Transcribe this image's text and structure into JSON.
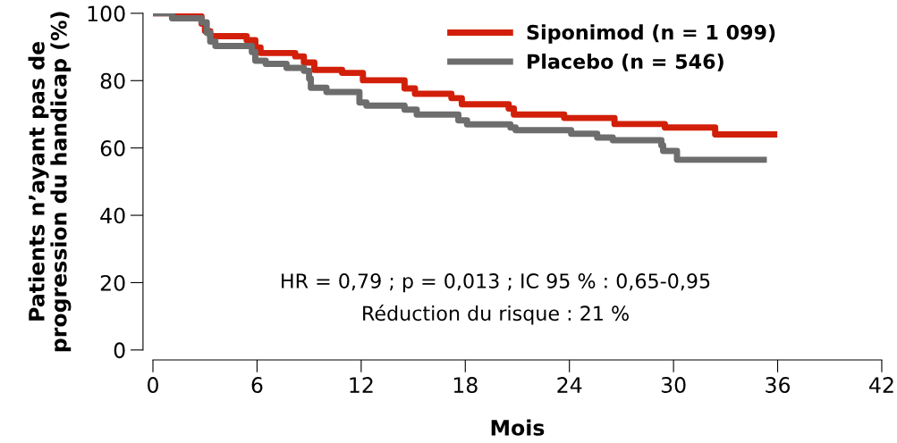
{
  "chart_data": {
    "type": "step",
    "xlabel": "Mois",
    "ylabel": "Patients n’ayant pas de\nprogression du handicap (%)",
    "xlim": [
      0,
      42
    ],
    "xticks": [
      0,
      6,
      12,
      18,
      24,
      30,
      36,
      42
    ],
    "ylim": [
      0,
      100
    ],
    "yticks": [
      0,
      20,
      40,
      60,
      80,
      100
    ],
    "grid": false,
    "legend": "top right",
    "series": [
      {
        "name": "Siponimod (n = 1 099)",
        "color": "#d21f0a",
        "x": [
          0,
          1.5,
          2.8,
          3.0,
          3.3,
          5.4,
          5.9,
          6.2,
          8.2,
          8.7,
          9.3,
          10.9,
          12.1,
          14.5,
          15.1,
          17.2,
          17.8,
          20.5,
          20.8,
          23.7,
          26.6,
          29.5,
          32.4,
          35.8
        ],
        "values": [
          100,
          99.1,
          96.9,
          94.7,
          93.2,
          92.0,
          89.8,
          88.2,
          87.2,
          85.4,
          83.2,
          82.3,
          80.1,
          77.7,
          76.1,
          74.8,
          73.0,
          71.7,
          69.9,
          68.9,
          67.1,
          66.1,
          64.0,
          64.0
        ]
      },
      {
        "name": "Placebo (n = 546)",
        "color": "#6d6d6d",
        "x": [
          0,
          1.1,
          2.8,
          3.1,
          3.3,
          3.6,
          5.7,
          5.9,
          6.5,
          7.7,
          8.7,
          9.0,
          9.1,
          10.0,
          11.9,
          12.3,
          14.5,
          15.2,
          17.6,
          18.1,
          20.6,
          20.9,
          24.1,
          25.6,
          26.5,
          29.3,
          29.4,
          30.2,
          35.2
        ],
        "values": [
          100,
          98.5,
          97.3,
          94.2,
          91.6,
          90.3,
          88.5,
          85.9,
          85.0,
          83.8,
          82.9,
          80.6,
          77.9,
          76.6,
          73.5,
          72.6,
          71.4,
          69.9,
          68.2,
          67.0,
          66.1,
          65.3,
          64.2,
          63.1,
          62.3,
          60.8,
          59.1,
          56.5,
          56.5
        ]
      }
    ],
    "annotations": [
      "HR = 0,79 ; p = 0,013 ; IC 95 % : 0,65-0,95",
      "Réduction du risque : 21 %"
    ]
  }
}
